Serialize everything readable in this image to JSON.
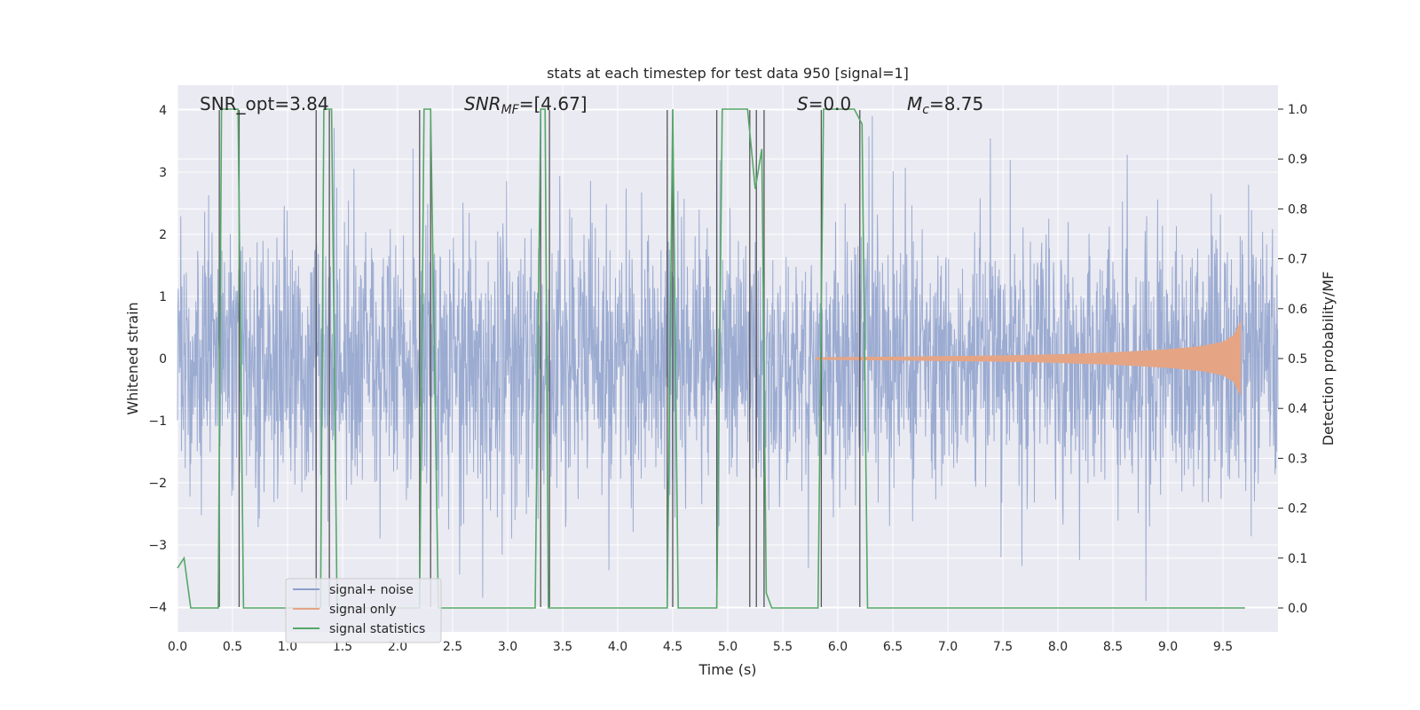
{
  "chart_data": {
    "type": "line",
    "title": "stats at each timestep for test data 950 [signal=1]",
    "xlabel": "Time (s)",
    "ylabel": "Whitened strain",
    "ylabel_right": "Detection probability/MF",
    "xlim": [
      0.0,
      10.0
    ],
    "ylim": [
      -4.4,
      4.4
    ],
    "ylim_right": [
      -0.048,
      1.048
    ],
    "x_ticks": [
      "0.0",
      "0.5",
      "1.0",
      "1.5",
      "2.0",
      "2.5",
      "3.0",
      "3.5",
      "4.0",
      "4.5",
      "5.0",
      "5.5",
      "6.0",
      "6.5",
      "7.0",
      "7.5",
      "8.0",
      "8.5",
      "9.0",
      "9.5"
    ],
    "y_ticks": [
      "−4",
      "−3",
      "−2",
      "−1",
      "0",
      "1",
      "2",
      "3",
      "4"
    ],
    "y_ticks_right": [
      "0.0",
      "0.1",
      "0.2",
      "0.3",
      "0.4",
      "0.5",
      "0.6",
      "0.7",
      "0.8",
      "0.9",
      "1.0"
    ],
    "grid": true,
    "legend_position": "lower-left",
    "annotations": [
      "SNR_opt=3.84",
      "SNR",
      "MF",
      "=[4.67]",
      "S",
      "=0.0",
      "M",
      "c",
      "=8.75"
    ],
    "series": [
      {
        "name": "signal+ noise",
        "color": "#8da0cb",
        "axis": "left",
        "style": "dense noise, typical range ±1.6, peaks up to about ±3.9"
      },
      {
        "name": "signal only",
        "color": "#e5a585",
        "axis": "left",
        "style": "chirp",
        "x": [
          5.8,
          6.5,
          7.0,
          7.5,
          8.0,
          8.5,
          9.0,
          9.3,
          9.5,
          9.6,
          9.66
        ],
        "amplitude": [
          0.02,
          0.03,
          0.04,
          0.05,
          0.07,
          0.1,
          0.15,
          0.2,
          0.27,
          0.38,
          0.6
        ]
      },
      {
        "name": "signal statistics",
        "color": "#55a868",
        "axis": "right",
        "x": [
          0.0,
          0.06,
          0.12,
          0.37,
          0.4,
          0.55,
          0.6,
          1.3,
          1.33,
          1.4,
          1.45,
          2.2,
          2.24,
          2.3,
          2.37,
          3.25,
          3.3,
          3.34,
          3.37,
          3.4,
          4.45,
          4.5,
          4.55,
          4.9,
          4.95,
          5.18,
          5.25,
          5.31,
          5.35,
          5.4,
          5.82,
          5.87,
          6.15,
          6.22,
          6.27,
          9.7
        ],
        "y": [
          0.08,
          0.1,
          0.0,
          0.0,
          1.0,
          1.0,
          0.0,
          0.0,
          1.0,
          1.0,
          0.0,
          0.0,
          1.0,
          1.0,
          0.0,
          0.0,
          1.0,
          1.0,
          0.0,
          0.0,
          0.0,
          1.0,
          0.0,
          0.0,
          1.0,
          1.0,
          0.84,
          0.92,
          0.03,
          0.0,
          0.0,
          1.0,
          1.0,
          0.97,
          0.0,
          0.0
        ]
      }
    ],
    "vertical_lines": [
      0.38,
      0.56,
      1.26,
      1.38,
      2.2,
      2.3,
      3.3,
      3.38,
      4.45,
      4.5,
      4.9,
      5.2,
      5.26,
      5.33,
      5.85,
      6.2
    ]
  }
}
